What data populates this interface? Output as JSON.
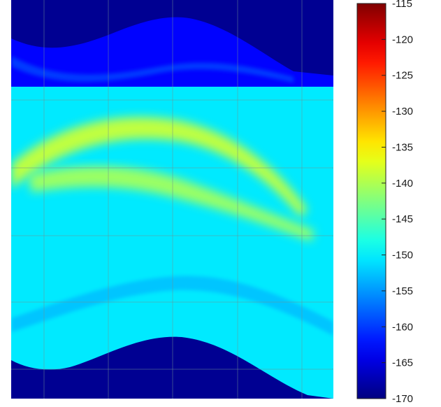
{
  "chart_data": {
    "type": "heatmap",
    "title": "",
    "xlabel": "",
    "ylabel": "",
    "colormap": "jet",
    "grid": true,
    "colorbar": {
      "position": "right",
      "range": [
        -170,
        -115
      ],
      "ticks": [
        "-115",
        "-120",
        "-125",
        "-130",
        "-135",
        "-140",
        "-145",
        "-150",
        "-155",
        "-160",
        "-165",
        "-170"
      ]
    },
    "field_levels": {
      "background": -169,
      "top_band": -163,
      "main_band": -150.5,
      "bright_arc": -139,
      "secondary_arc": -141,
      "inner_ridge": -160
    },
    "colors": {
      "background_dark": "#00007f",
      "colorbar_max": "#7f0000",
      "grid": "#6f8f8f"
    }
  }
}
